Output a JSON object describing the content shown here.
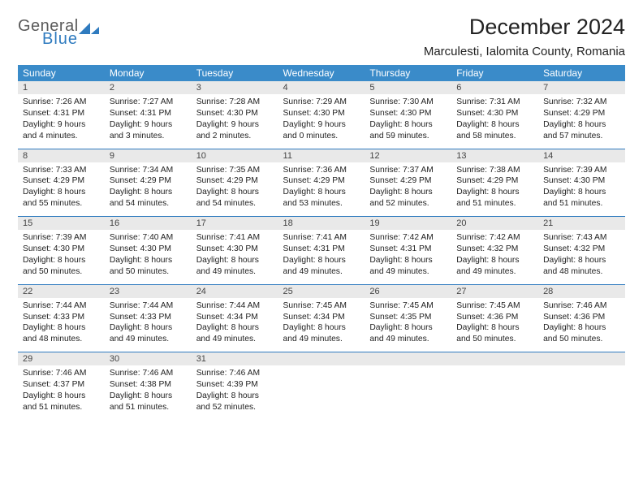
{
  "logo": {
    "line1": "General",
    "line2": "Blue"
  },
  "title": "December 2024",
  "location": "Marculesti, Ialomita County, Romania",
  "header_bg": "#3a8bc9",
  "header_fg": "#ffffff",
  "rule_color": "#2f7bbf",
  "daynum_bg": "#e9e9e9",
  "weekdays": [
    "Sunday",
    "Monday",
    "Tuesday",
    "Wednesday",
    "Thursday",
    "Friday",
    "Saturday"
  ],
  "weeks": [
    [
      {
        "n": "1",
        "sr": "Sunrise: 7:26 AM",
        "ss": "Sunset: 4:31 PM",
        "d1": "Daylight: 9 hours",
        "d2": "and 4 minutes."
      },
      {
        "n": "2",
        "sr": "Sunrise: 7:27 AM",
        "ss": "Sunset: 4:31 PM",
        "d1": "Daylight: 9 hours",
        "d2": "and 3 minutes."
      },
      {
        "n": "3",
        "sr": "Sunrise: 7:28 AM",
        "ss": "Sunset: 4:30 PM",
        "d1": "Daylight: 9 hours",
        "d2": "and 2 minutes."
      },
      {
        "n": "4",
        "sr": "Sunrise: 7:29 AM",
        "ss": "Sunset: 4:30 PM",
        "d1": "Daylight: 9 hours",
        "d2": "and 0 minutes."
      },
      {
        "n": "5",
        "sr": "Sunrise: 7:30 AM",
        "ss": "Sunset: 4:30 PM",
        "d1": "Daylight: 8 hours",
        "d2": "and 59 minutes."
      },
      {
        "n": "6",
        "sr": "Sunrise: 7:31 AM",
        "ss": "Sunset: 4:30 PM",
        "d1": "Daylight: 8 hours",
        "d2": "and 58 minutes."
      },
      {
        "n": "7",
        "sr": "Sunrise: 7:32 AM",
        "ss": "Sunset: 4:29 PM",
        "d1": "Daylight: 8 hours",
        "d2": "and 57 minutes."
      }
    ],
    [
      {
        "n": "8",
        "sr": "Sunrise: 7:33 AM",
        "ss": "Sunset: 4:29 PM",
        "d1": "Daylight: 8 hours",
        "d2": "and 55 minutes."
      },
      {
        "n": "9",
        "sr": "Sunrise: 7:34 AM",
        "ss": "Sunset: 4:29 PM",
        "d1": "Daylight: 8 hours",
        "d2": "and 54 minutes."
      },
      {
        "n": "10",
        "sr": "Sunrise: 7:35 AM",
        "ss": "Sunset: 4:29 PM",
        "d1": "Daylight: 8 hours",
        "d2": "and 54 minutes."
      },
      {
        "n": "11",
        "sr": "Sunrise: 7:36 AM",
        "ss": "Sunset: 4:29 PM",
        "d1": "Daylight: 8 hours",
        "d2": "and 53 minutes."
      },
      {
        "n": "12",
        "sr": "Sunrise: 7:37 AM",
        "ss": "Sunset: 4:29 PM",
        "d1": "Daylight: 8 hours",
        "d2": "and 52 minutes."
      },
      {
        "n": "13",
        "sr": "Sunrise: 7:38 AM",
        "ss": "Sunset: 4:29 PM",
        "d1": "Daylight: 8 hours",
        "d2": "and 51 minutes."
      },
      {
        "n": "14",
        "sr": "Sunrise: 7:39 AM",
        "ss": "Sunset: 4:30 PM",
        "d1": "Daylight: 8 hours",
        "d2": "and 51 minutes."
      }
    ],
    [
      {
        "n": "15",
        "sr": "Sunrise: 7:39 AM",
        "ss": "Sunset: 4:30 PM",
        "d1": "Daylight: 8 hours",
        "d2": "and 50 minutes."
      },
      {
        "n": "16",
        "sr": "Sunrise: 7:40 AM",
        "ss": "Sunset: 4:30 PM",
        "d1": "Daylight: 8 hours",
        "d2": "and 50 minutes."
      },
      {
        "n": "17",
        "sr": "Sunrise: 7:41 AM",
        "ss": "Sunset: 4:30 PM",
        "d1": "Daylight: 8 hours",
        "d2": "and 49 minutes."
      },
      {
        "n": "18",
        "sr": "Sunrise: 7:41 AM",
        "ss": "Sunset: 4:31 PM",
        "d1": "Daylight: 8 hours",
        "d2": "and 49 minutes."
      },
      {
        "n": "19",
        "sr": "Sunrise: 7:42 AM",
        "ss": "Sunset: 4:31 PM",
        "d1": "Daylight: 8 hours",
        "d2": "and 49 minutes."
      },
      {
        "n": "20",
        "sr": "Sunrise: 7:42 AM",
        "ss": "Sunset: 4:32 PM",
        "d1": "Daylight: 8 hours",
        "d2": "and 49 minutes."
      },
      {
        "n": "21",
        "sr": "Sunrise: 7:43 AM",
        "ss": "Sunset: 4:32 PM",
        "d1": "Daylight: 8 hours",
        "d2": "and 48 minutes."
      }
    ],
    [
      {
        "n": "22",
        "sr": "Sunrise: 7:44 AM",
        "ss": "Sunset: 4:33 PM",
        "d1": "Daylight: 8 hours",
        "d2": "and 48 minutes."
      },
      {
        "n": "23",
        "sr": "Sunrise: 7:44 AM",
        "ss": "Sunset: 4:33 PM",
        "d1": "Daylight: 8 hours",
        "d2": "and 49 minutes."
      },
      {
        "n": "24",
        "sr": "Sunrise: 7:44 AM",
        "ss": "Sunset: 4:34 PM",
        "d1": "Daylight: 8 hours",
        "d2": "and 49 minutes."
      },
      {
        "n": "25",
        "sr": "Sunrise: 7:45 AM",
        "ss": "Sunset: 4:34 PM",
        "d1": "Daylight: 8 hours",
        "d2": "and 49 minutes."
      },
      {
        "n": "26",
        "sr": "Sunrise: 7:45 AM",
        "ss": "Sunset: 4:35 PM",
        "d1": "Daylight: 8 hours",
        "d2": "and 49 minutes."
      },
      {
        "n": "27",
        "sr": "Sunrise: 7:45 AM",
        "ss": "Sunset: 4:36 PM",
        "d1": "Daylight: 8 hours",
        "d2": "and 50 minutes."
      },
      {
        "n": "28",
        "sr": "Sunrise: 7:46 AM",
        "ss": "Sunset: 4:36 PM",
        "d1": "Daylight: 8 hours",
        "d2": "and 50 minutes."
      }
    ],
    [
      {
        "n": "29",
        "sr": "Sunrise: 7:46 AM",
        "ss": "Sunset: 4:37 PM",
        "d1": "Daylight: 8 hours",
        "d2": "and 51 minutes."
      },
      {
        "n": "30",
        "sr": "Sunrise: 7:46 AM",
        "ss": "Sunset: 4:38 PM",
        "d1": "Daylight: 8 hours",
        "d2": "and 51 minutes."
      },
      {
        "n": "31",
        "sr": "Sunrise: 7:46 AM",
        "ss": "Sunset: 4:39 PM",
        "d1": "Daylight: 8 hours",
        "d2": "and 52 minutes."
      },
      null,
      null,
      null,
      null
    ]
  ]
}
